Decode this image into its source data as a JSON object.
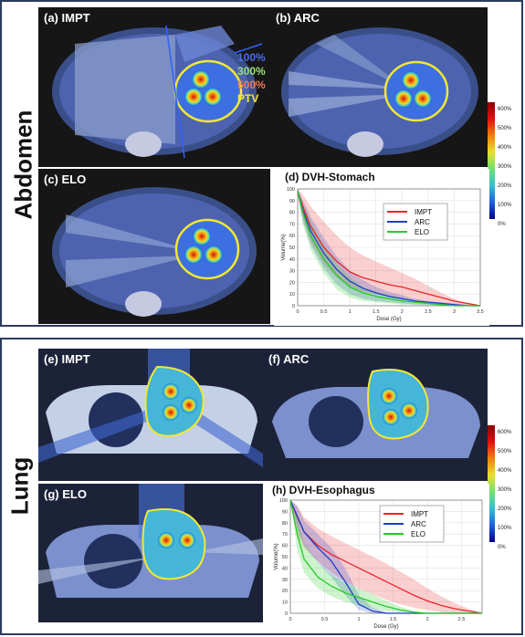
{
  "sections": [
    {
      "label": "Abdomen"
    },
    {
      "label": "Lung"
    }
  ],
  "panels": [
    {
      "title": "(a) IMPT"
    },
    {
      "title": "(b) ARC"
    },
    {
      "title": "(c) ELO"
    },
    {
      "title": "(e) IMPT"
    },
    {
      "title": "(f) ARC"
    },
    {
      "title": "(g) ELO"
    }
  ],
  "isodose_legend": [
    {
      "label": "100%",
      "color": "#4a6ee8"
    },
    {
      "label": "300%",
      "color": "#9be07a"
    },
    {
      "label": "500%",
      "color": "#f07a58"
    },
    {
      "label": "PTV",
      "color": "#f2e830"
    }
  ],
  "colorbars": [
    {
      "ticks": [
        "600%",
        "500%",
        "400%",
        "300%",
        "200%",
        "100%",
        "0%"
      ]
    },
    {
      "ticks": [
        "600%",
        "500%",
        "400%",
        "300%",
        "200%",
        "100%",
        "0%"
      ]
    }
  ],
  "chart_data": [
    {
      "type": "line",
      "title": "(d) DVH-Stomach",
      "xlabel": "Dose (Gy)",
      "ylabel": "Volume(%)",
      "xlim": [
        0,
        3.5
      ],
      "ylim": [
        0,
        100
      ],
      "xticks": [
        "0",
        "0.5",
        "1",
        "1.5",
        "2",
        "2.5",
        "3",
        "3.5"
      ],
      "yticks": [
        "0",
        "10",
        "20",
        "30",
        "40",
        "50",
        "60",
        "70",
        "80",
        "90",
        "100"
      ],
      "grid": true,
      "legend_position": "top-right",
      "series": [
        {
          "name": "IMPT",
          "color": "#e8252a",
          "x": [
            0,
            0.1,
            0.25,
            0.5,
            0.75,
            1.0,
            1.25,
            1.5,
            1.75,
            2.0,
            2.25,
            2.5,
            2.75,
            3.0,
            3.25,
            3.5
          ],
          "y": [
            98,
            85,
            68,
            50,
            38,
            29,
            24,
            21,
            18,
            16,
            13,
            10,
            7,
            4,
            2,
            0
          ],
          "band_upper": [
            100,
            95,
            85,
            72,
            60,
            50,
            43,
            38,
            33,
            28,
            23,
            17,
            11,
            6,
            2,
            0
          ],
          "band_lower": [
            95,
            75,
            55,
            36,
            24,
            16,
            12,
            10,
            8,
            6,
            4,
            3,
            2,
            1,
            0,
            0
          ]
        },
        {
          "name": "ARC",
          "color": "#1f3fc8",
          "x": [
            0,
            0.1,
            0.25,
            0.5,
            0.75,
            1.0,
            1.25,
            1.5,
            1.75,
            2.0,
            2.25,
            2.5,
            2.75,
            3.0,
            3.25,
            3.5
          ],
          "y": [
            98,
            82,
            64,
            45,
            31,
            21,
            15,
            11,
            8,
            6,
            4,
            3,
            2,
            1,
            0,
            0
          ],
          "band_upper": [
            100,
            90,
            76,
            58,
            42,
            30,
            22,
            16,
            12,
            9,
            6,
            4,
            3,
            2,
            1,
            0
          ],
          "band_lower": [
            95,
            72,
            52,
            32,
            18,
            10,
            6,
            4,
            3,
            2,
            1,
            1,
            0,
            0,
            0,
            0
          ]
        },
        {
          "name": "ELO",
          "color": "#22cc22",
          "x": [
            0,
            0.1,
            0.25,
            0.5,
            0.75,
            1.0,
            1.25,
            1.5,
            1.75,
            2.0,
            2.25,
            2.5,
            2.75,
            3.0,
            3.25,
            3.5
          ],
          "y": [
            98,
            80,
            60,
            40,
            26,
            16,
            11,
            8,
            6,
            4,
            3,
            2,
            1,
            0,
            0,
            0
          ],
          "band_upper": [
            100,
            88,
            72,
            52,
            36,
            24,
            16,
            12,
            9,
            7,
            5,
            3,
            2,
            1,
            0,
            0
          ],
          "band_lower": [
            95,
            70,
            48,
            28,
            14,
            7,
            4,
            3,
            2,
            1,
            1,
            0,
            0,
            0,
            0,
            0
          ]
        }
      ]
    },
    {
      "type": "line",
      "title": "(h) DVH-Esophagus",
      "xlabel": "Dose (Gy)",
      "ylabel": "Volume(%)",
      "xlim": [
        0,
        2.8
      ],
      "ylim": [
        0,
        100
      ],
      "xticks": [
        "0",
        "0.5",
        "1",
        "1.5",
        "2",
        "2.5"
      ],
      "yticks": [
        "0",
        "10",
        "20",
        "30",
        "40",
        "50",
        "60",
        "70",
        "80",
        "90",
        "100"
      ],
      "grid": true,
      "legend_position": "top-right",
      "series": [
        {
          "name": "IMPT",
          "color": "#e8252a",
          "x": [
            0,
            0.1,
            0.2,
            0.4,
            0.6,
            0.8,
            1.0,
            1.2,
            1.4,
            1.6,
            1.8,
            2.0,
            2.2,
            2.4,
            2.6,
            2.8
          ],
          "y": [
            100,
            85,
            72,
            60,
            52,
            46,
            40,
            34,
            28,
            22,
            16,
            11,
            7,
            4,
            2,
            0
          ],
          "band_upper": [
            100,
            95,
            85,
            75,
            68,
            62,
            56,
            50,
            44,
            37,
            30,
            22,
            15,
            9,
            4,
            0
          ],
          "band_lower": [
            100,
            70,
            58,
            46,
            36,
            28,
            22,
            17,
            12,
            8,
            5,
            3,
            1,
            0,
            0,
            0
          ]
        },
        {
          "name": "ARC",
          "color": "#1f3fc8",
          "x": [
            0,
            0.1,
            0.2,
            0.4,
            0.6,
            0.8,
            1.0,
            1.2,
            1.4,
            1.6,
            1.8,
            2.0,
            2.2,
            2.4,
            2.6,
            2.8
          ],
          "y": [
            100,
            86,
            72,
            58,
            46,
            28,
            8,
            2,
            0,
            0,
            0,
            0,
            0,
            0,
            0,
            0
          ],
          "band_upper": [
            100,
            95,
            82,
            70,
            58,
            40,
            16,
            5,
            1,
            0,
            0,
            0,
            0,
            0,
            0,
            0
          ],
          "band_lower": [
            100,
            75,
            60,
            45,
            32,
            16,
            3,
            0,
            0,
            0,
            0,
            0,
            0,
            0,
            0,
            0
          ]
        },
        {
          "name": "ELO",
          "color": "#22cc22",
          "x": [
            0,
            0.1,
            0.2,
            0.4,
            0.6,
            0.8,
            1.0,
            1.2,
            1.4,
            1.6,
            1.8,
            2.0,
            2.2,
            2.4,
            2.6,
            2.8
          ],
          "y": [
            100,
            70,
            48,
            32,
            24,
            18,
            14,
            10,
            6,
            3,
            1,
            0,
            0,
            0,
            0,
            0
          ],
          "band_upper": [
            100,
            85,
            62,
            45,
            34,
            27,
            22,
            17,
            11,
            6,
            2,
            0,
            0,
            0,
            0,
            0
          ],
          "band_lower": [
            100,
            56,
            36,
            22,
            15,
            10,
            7,
            4,
            2,
            1,
            0,
            0,
            0,
            0,
            0,
            0
          ]
        }
      ]
    }
  ]
}
